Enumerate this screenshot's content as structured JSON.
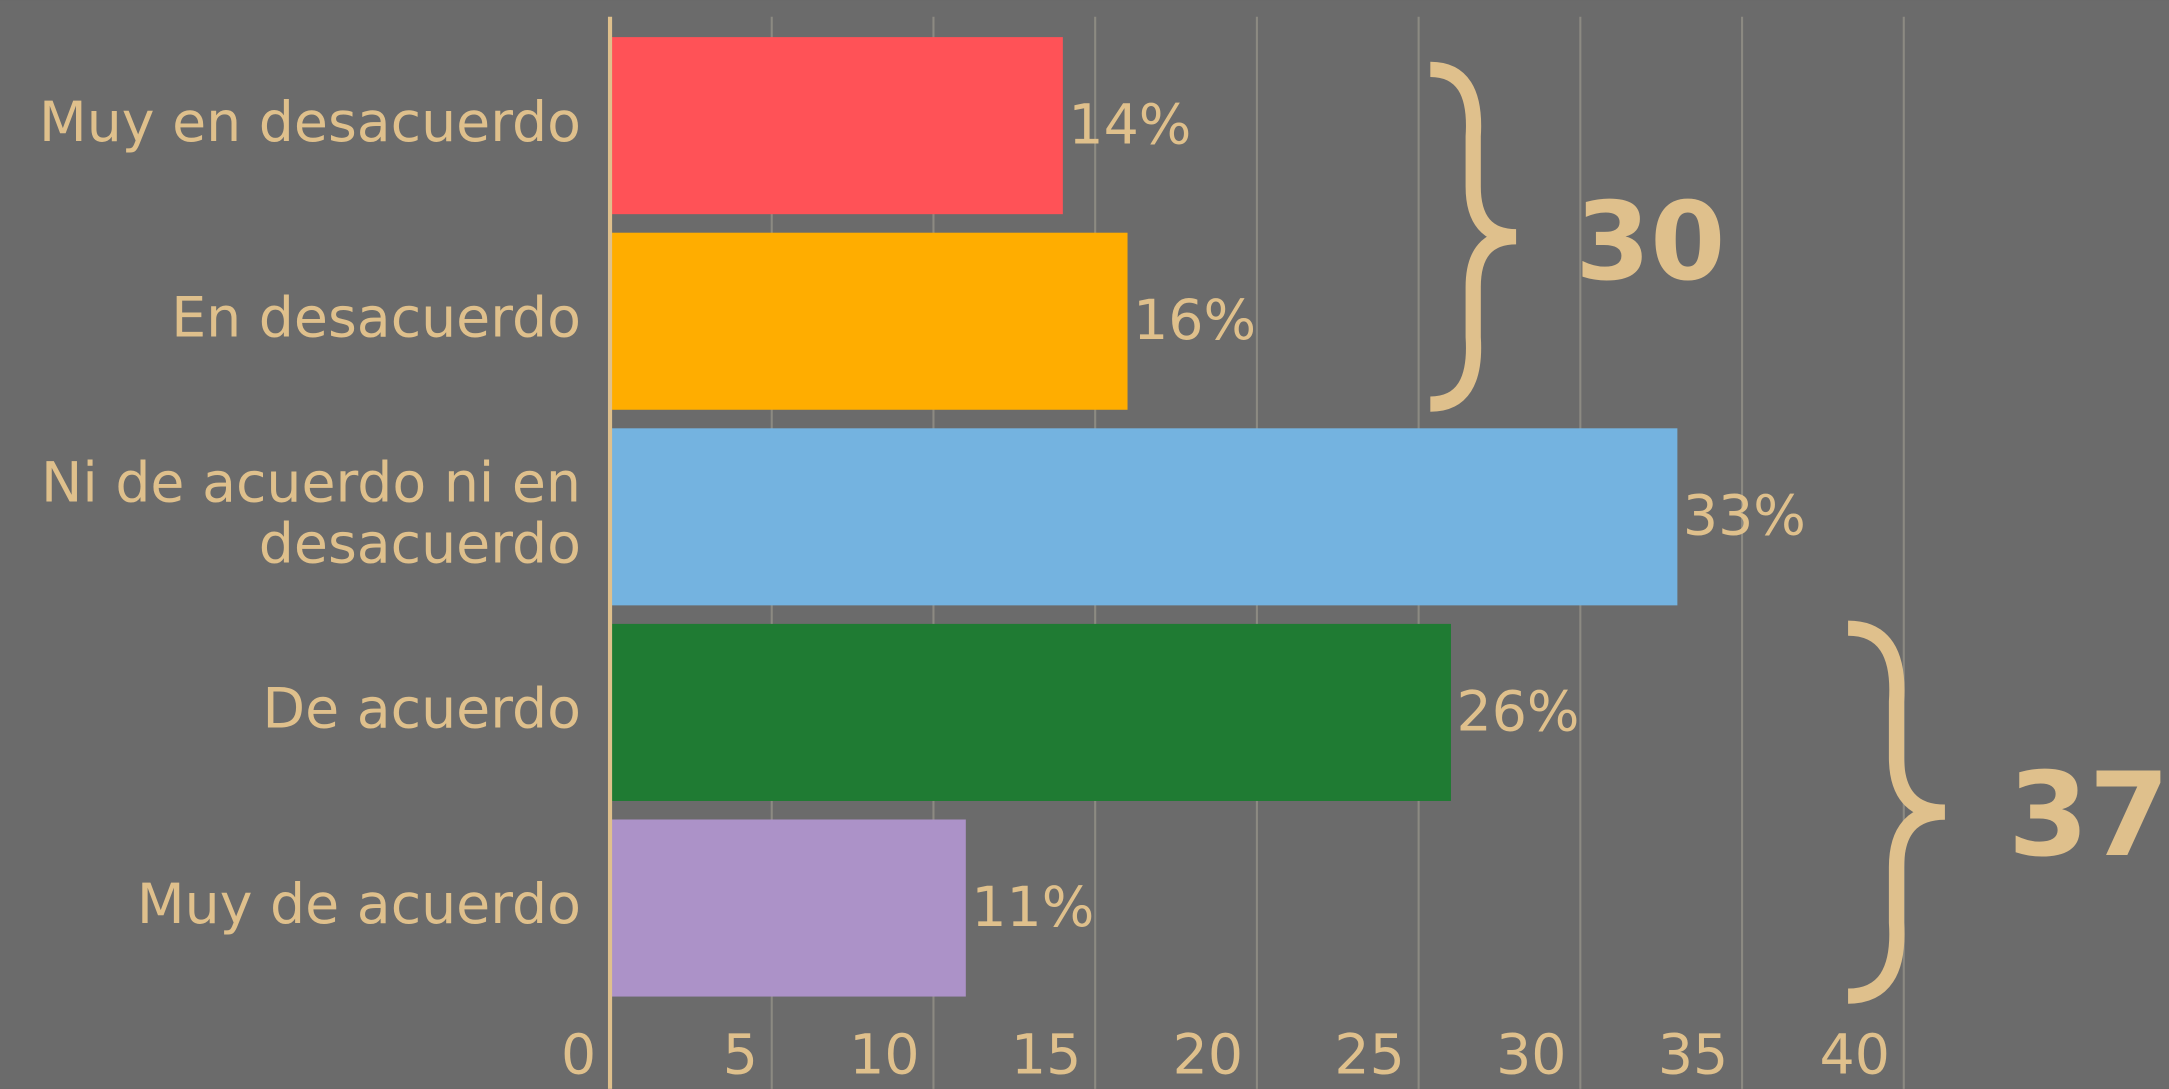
{
  "chart_data": {
    "type": "bar",
    "orientation": "horizontal",
    "categories": [
      "Muy en desacuerdo",
      "En desacuerdo",
      "Ni de acuerdo ni en desacuerdo",
      "De acuerdo",
      "Muy de acuerdo"
    ],
    "values": [
      14,
      16,
      33,
      26,
      11
    ],
    "value_labels": [
      "14%",
      "16%",
      "33%",
      "26%",
      "11%"
    ],
    "colors": [
      "#ff5257",
      "#ffad00",
      "#74b3e0",
      "#1f7b33",
      "#ac92c8"
    ],
    "xlim": [
      0,
      48.2
    ],
    "xticks": [
      0,
      5,
      10,
      15,
      20,
      25,
      30,
      35,
      40
    ],
    "grid": true,
    "annotations": [
      "30",
      "37"
    ]
  }
}
